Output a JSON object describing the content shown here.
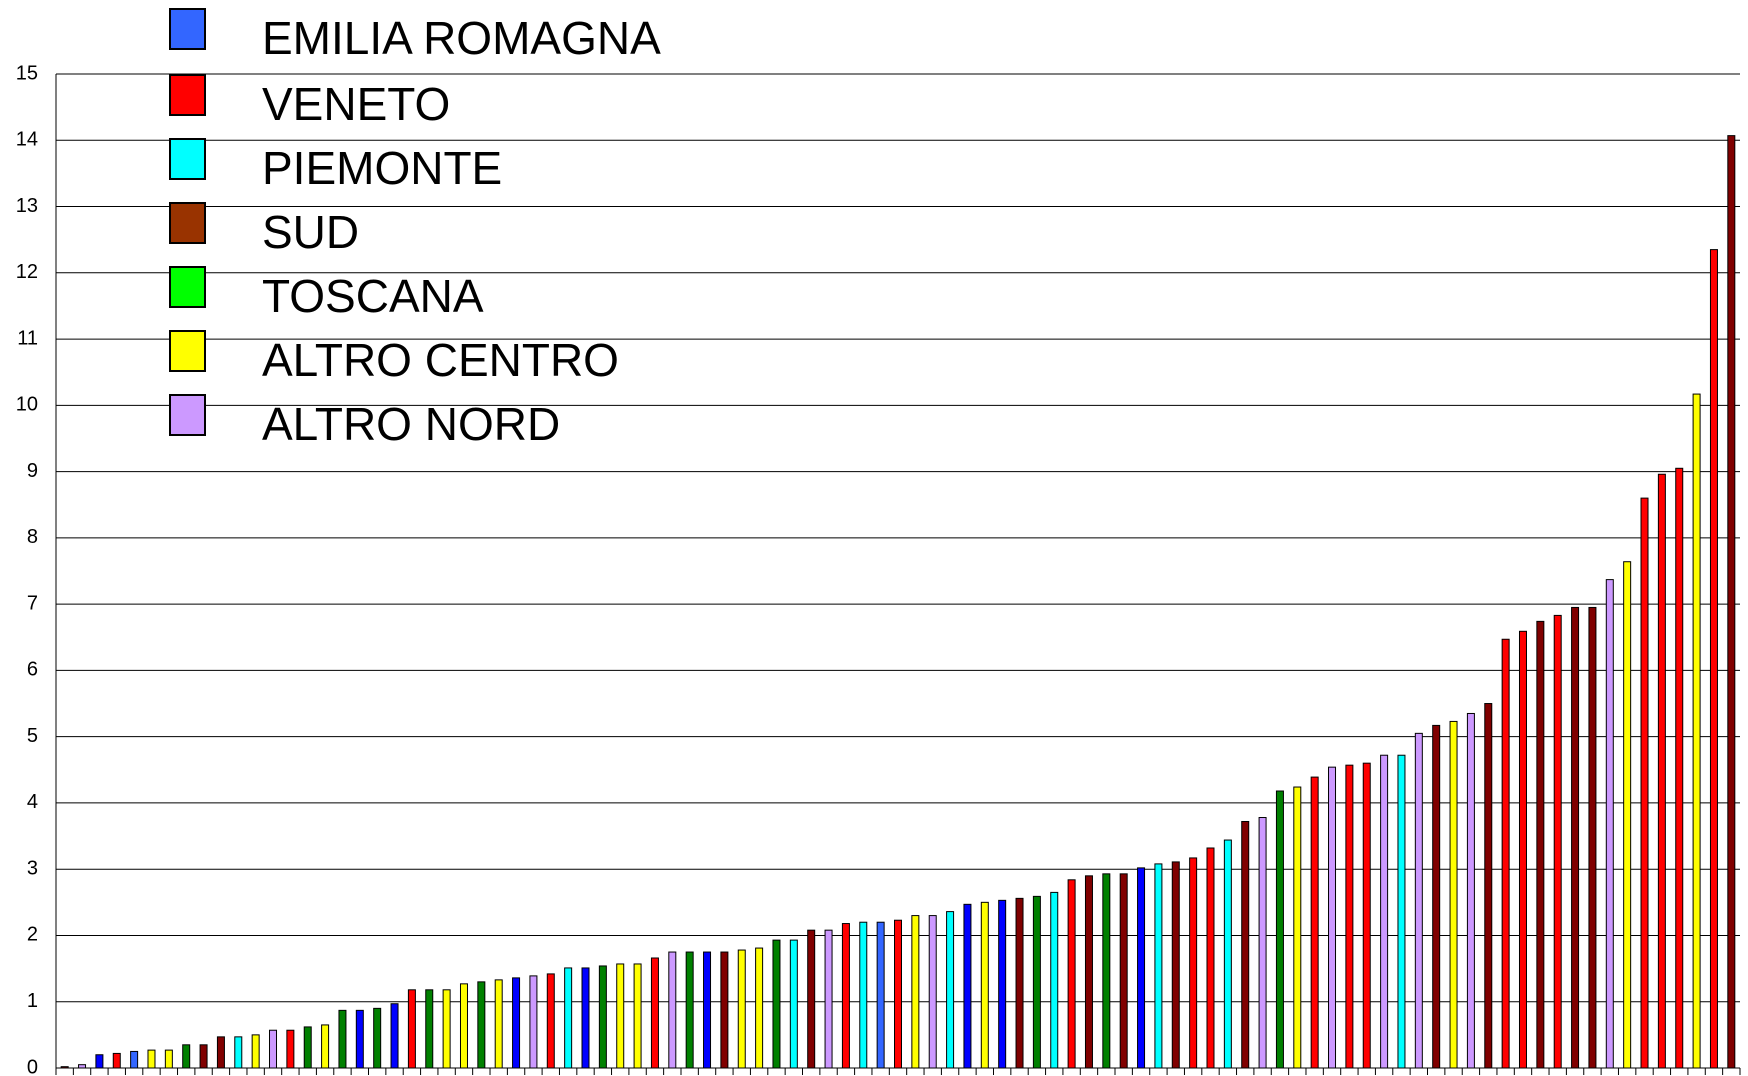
{
  "chart_data": {
    "type": "bar",
    "legend": [
      {
        "name": "EMILIA ROMAGNA",
        "color": "#3366ff"
      },
      {
        "name": "VENETO",
        "color": "#ff0000"
      },
      {
        "name": "PIEMONTE",
        "color": "#00ffff"
      },
      {
        "name": "SUD",
        "color": "#993300"
      },
      {
        "name": "TOSCANA",
        "color": "#00ff00"
      },
      {
        "name": "ALTRO CENTRO",
        "color": "#ffff00"
      },
      {
        "name": "ALTRO NORD",
        "color": "#cc99ff"
      }
    ],
    "values": [
      0.02,
      0.05,
      0.2,
      0.22,
      0.25,
      0.27,
      0.27,
      0.35,
      0.35,
      0.47,
      0.47,
      0.5,
      0.57,
      0.57,
      0.62,
      0.65,
      0.87,
      0.87,
      0.9,
      0.97,
      1.18,
      1.18,
      1.18,
      1.27,
      1.3,
      1.33,
      1.36,
      1.39,
      1.42,
      1.51,
      1.51,
      1.54,
      1.57,
      1.57,
      1.66,
      1.75,
      1.75,
      1.75,
      1.75,
      1.78,
      1.81,
      1.93,
      1.93,
      2.08,
      2.08,
      2.18,
      2.2,
      2.2,
      2.23,
      2.3,
      2.3,
      2.36,
      2.47,
      2.5,
      2.53,
      2.56,
      2.59,
      2.65,
      2.84,
      2.9,
      2.93,
      2.93,
      3.02,
      3.08,
      3.11,
      3.17,
      3.32,
      3.44,
      3.72,
      3.78,
      4.18,
      4.24,
      4.39,
      4.54,
      4.57,
      4.6,
      4.72,
      4.72,
      5.05,
      5.17,
      5.23,
      5.35,
      5.5,
      6.47,
      6.59,
      6.74,
      6.83,
      6.95,
      6.95,
      7.37,
      7.64,
      8.6,
      8.96,
      9.05,
      10.17,
      12.35,
      14.07
    ],
    "bar_colors": [
      "#800000",
      "#cc99ff",
      "#0000ff",
      "#ff0000",
      "#3366ff",
      "#ffff00",
      "#ffff00",
      "#008000",
      "#800000",
      "#800000",
      "#00ffff",
      "#ffff00",
      "#cc99ff",
      "#ff0000",
      "#008000",
      "#ffff00",
      "#008000",
      "#0000ff",
      "#008000",
      "#0000ff",
      "#ff0000",
      "#008000",
      "#ffff00",
      "#ffff00",
      "#008000",
      "#ffff00",
      "#0000ff",
      "#cc99ff",
      "#ff0000",
      "#00ffff",
      "#0000ff",
      "#008000",
      "#ffff00",
      "#ffff00",
      "#ff0000",
      "#cc99ff",
      "#008000",
      "#0000ff",
      "#800000",
      "#ffff00",
      "#ffff00",
      "#008000",
      "#00ffff",
      "#800000",
      "#cc99ff",
      "#ff0000",
      "#00ffff",
      "#3366ff",
      "#ff0000",
      "#ffff00",
      "#cc99ff",
      "#00ffff",
      "#0000ff",
      "#ffff00",
      "#0000ff",
      "#800000",
      "#008000",
      "#00ffff",
      "#ff0000",
      "#800000",
      "#008000",
      "#800000",
      "#0000ff",
      "#00ffff",
      "#800000",
      "#ff0000",
      "#ff0000",
      "#00ffff",
      "#800000",
      "#cc99ff",
      "#008000",
      "#ffff00",
      "#ff0000",
      "#cc99ff",
      "#ff0000",
      "#ff0000",
      "#cc99ff",
      "#00ffff",
      "#cc99ff",
      "#800000",
      "#ffff00",
      "#cc99ff",
      "#800000",
      "#ff0000",
      "#ff0000",
      "#800000",
      "#ff0000",
      "#800000",
      "#800000",
      "#cc99ff",
      "#ffff00",
      "#ff0000",
      "#ff0000",
      "#ff0000",
      "#ffff00",
      "#ff0000",
      "#800000"
    ],
    "ylim": [
      0,
      15
    ],
    "yticks": [
      0,
      1,
      2,
      3,
      4,
      5,
      6,
      7,
      8,
      9,
      10,
      11,
      12,
      13,
      14,
      15
    ],
    "grid": true
  }
}
